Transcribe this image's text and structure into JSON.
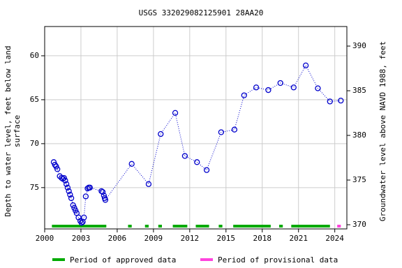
{
  "chart_data": {
    "type": "scatter",
    "title": "USGS 332029082125901 28AA20",
    "y_label": [
      "Depth to water level, feet below land",
      "surface"
    ],
    "y2_label": "Groundwater level above NAVD 1988, feet",
    "xlim": [
      2000,
      2025
    ],
    "xticks": [
      2000,
      2003,
      2006,
      2009,
      2012,
      2015,
      2018,
      2021,
      2024
    ],
    "ylim": [
      79.7,
      56.67
    ],
    "yticks": [
      60,
      65,
      70,
      75
    ],
    "y2lim": [
      369.53,
      392.19
    ],
    "y2ticks": [
      370,
      375,
      380,
      385,
      390
    ],
    "grid": true,
    "series": [
      {
        "name": "Depth to water level",
        "color": "#0000cc",
        "x": [
          2000.75,
          2000.85,
          2000.95,
          2001.05,
          2001.25,
          2001.4,
          2001.5,
          2001.6,
          2001.7,
          2001.8,
          2001.9,
          2002.0,
          2002.1,
          2002.2,
          2002.35,
          2002.45,
          2002.55,
          2002.65,
          2002.8,
          2002.95,
          2003.05,
          2003.15,
          2003.25,
          2003.4,
          2003.55,
          2003.65,
          2003.75,
          2004.7,
          2004.8,
          2004.9,
          2004.97,
          2005.02,
          2007.2,
          2008.6,
          2009.6,
          2010.8,
          2011.6,
          2012.6,
          2013.4,
          2014.6,
          2015.7,
          2016.5,
          2017.5,
          2018.5,
          2019.5,
          2020.6,
          2021.6,
          2022.6,
          2023.6,
          2024.5
        ],
        "values": [
          72.1,
          72.4,
          72.6,
          72.9,
          73.7,
          73.9,
          74.0,
          73.9,
          74.2,
          74.6,
          75.0,
          75.4,
          75.8,
          76.2,
          77.0,
          77.3,
          77.6,
          77.9,
          78.4,
          78.8,
          79.0,
          78.9,
          78.4,
          76.0,
          75.1,
          75.0,
          75.0,
          75.4,
          75.5,
          75.9,
          76.2,
          76.4,
          72.3,
          74.6,
          68.9,
          66.5,
          71.4,
          72.1,
          73.0,
          68.7,
          68.4,
          64.5,
          63.6,
          63.9,
          63.1,
          63.6,
          61.1,
          63.7,
          65.2,
          65.1
        ]
      }
    ],
    "approved_name": "Period of approved data",
    "approved_color": "#00aa00",
    "approved_periods": [
      [
        2000.6,
        2005.1
      ],
      [
        2006.9,
        2007.2
      ],
      [
        2008.3,
        2008.6
      ],
      [
        2009.4,
        2009.7
      ],
      [
        2010.6,
        2011.8
      ],
      [
        2012.5,
        2013.6
      ],
      [
        2014.4,
        2014.7
      ],
      [
        2015.6,
        2018.7
      ],
      [
        2019.4,
        2019.7
      ],
      [
        2020.4,
        2023.6
      ]
    ],
    "provisional_name": "Period of provisional data",
    "provisional_color": "#ff44dd",
    "provisional_periods": [
      [
        2024.2,
        2024.5
      ]
    ]
  }
}
